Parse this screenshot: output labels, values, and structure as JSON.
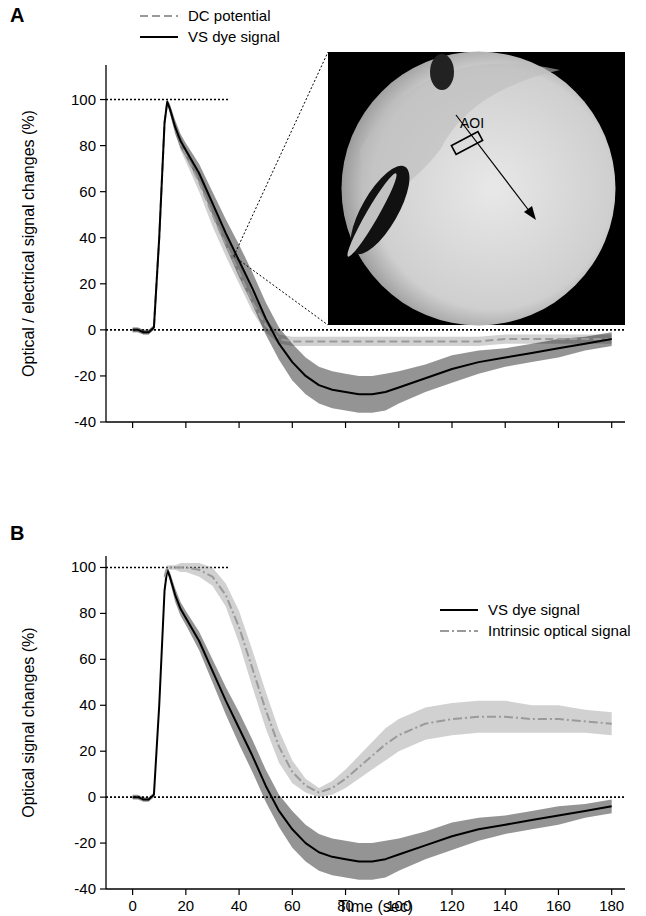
{
  "chart_data": [
    {
      "type": "line",
      "title": "A",
      "y_label": "Optical / electrical signal changes (%)",
      "x": [
        0,
        2,
        4,
        6,
        8,
        10,
        12,
        13,
        14,
        16,
        18,
        20,
        25,
        30,
        35,
        40,
        45,
        50,
        55,
        60,
        65,
        70,
        75,
        80,
        85,
        90,
        95,
        100,
        110,
        120,
        130,
        140,
        150,
        160,
        170,
        180
      ],
      "xlim": [
        -10,
        185
      ],
      "xticks": [
        0,
        20,
        40,
        60,
        80,
        100,
        120,
        140,
        160,
        180
      ],
      "ylim": [
        -40,
        115
      ],
      "yticks": [
        -40,
        -20,
        0,
        20,
        40,
        60,
        80,
        100
      ],
      "tick_labels": "y",
      "legend": "top left",
      "grid": false,
      "annotation": "AOI",
      "reference_lines": [
        {
          "y": 100,
          "x_end": 36
        },
        {
          "y": 0
        }
      ],
      "series": [
        {
          "name": "DC potential",
          "color": "#9a9a9a",
          "line_style": "dashed",
          "values": [
            0,
            0,
            -1,
            -1,
            1,
            40,
            90,
            99,
            96,
            88,
            81,
            76,
            64,
            50,
            37,
            25,
            12,
            2,
            -4,
            -5,
            -5,
            -5,
            -5,
            -5,
            -5,
            -5,
            -5,
            -5,
            -5,
            -5,
            -5,
            -4,
            -4,
            -4,
            -4,
            -4
          ],
          "errors": [
            1,
            1,
            1,
            1,
            1,
            2,
            2,
            1,
            2,
            2,
            3,
            3,
            4,
            5,
            5,
            5,
            4,
            3,
            2,
            2,
            2,
            2,
            2,
            2,
            2,
            2,
            2,
            2,
            2,
            2,
            2,
            2,
            2,
            2,
            2,
            2
          ]
        },
        {
          "name": "VS dye signal",
          "color": "#000000",
          "line_style": "solid",
          "values": [
            0,
            0,
            -1,
            -1,
            1,
            40,
            90,
            99,
            96,
            88,
            82,
            78,
            68,
            55,
            42,
            30,
            18,
            5,
            -6,
            -14,
            -20,
            -24,
            -26,
            -27,
            -28,
            -28,
            -27,
            -25,
            -21,
            -17,
            -14,
            -12,
            -10,
            -8,
            -6,
            -4
          ],
          "errors": [
            1,
            1,
            1,
            1,
            1,
            2,
            2,
            1,
            2,
            3,
            3,
            3,
            4,
            5,
            6,
            7,
            7,
            7,
            7,
            8,
            8,
            8,
            8,
            8,
            8,
            8,
            8,
            7,
            6,
            6,
            5,
            4,
            4,
            4,
            3,
            3
          ]
        }
      ]
    },
    {
      "type": "line",
      "title": "B",
      "y_label": "Optical signal changes (%)",
      "x_label": "Time (sec)",
      "x": [
        0,
        2,
        4,
        6,
        8,
        10,
        12,
        13,
        14,
        16,
        18,
        20,
        25,
        30,
        35,
        40,
        45,
        50,
        55,
        60,
        65,
        70,
        75,
        80,
        85,
        90,
        95,
        100,
        110,
        120,
        130,
        140,
        150,
        160,
        170,
        180
      ],
      "xlim": [
        -10,
        185
      ],
      "xticks": [
        0,
        20,
        40,
        60,
        80,
        100,
        120,
        140,
        160,
        180
      ],
      "ylim": [
        -40,
        105
      ],
      "yticks": [
        -40,
        -20,
        0,
        20,
        40,
        60,
        80,
        100
      ],
      "legend": "top right",
      "grid": false,
      "reference_lines": [
        {
          "y": 100,
          "x_end": 36
        },
        {
          "y": 0
        }
      ],
      "series": [
        {
          "name": "VS dye signal",
          "color": "#000000",
          "line_style": "solid",
          "values": [
            0,
            0,
            -1,
            -1,
            1,
            40,
            90,
            99,
            96,
            88,
            82,
            78,
            68,
            55,
            42,
            30,
            18,
            5,
            -6,
            -14,
            -20,
            -24,
            -26,
            -27,
            -28,
            -28,
            -27,
            -25,
            -21,
            -17,
            -14,
            -12,
            -10,
            -8,
            -6,
            -4
          ],
          "errors": [
            1,
            1,
            1,
            1,
            1,
            2,
            2,
            1,
            2,
            3,
            3,
            3,
            4,
            5,
            6,
            7,
            7,
            7,
            7,
            8,
            8,
            8,
            8,
            8,
            8,
            8,
            8,
            7,
            6,
            6,
            5,
            4,
            4,
            4,
            3,
            3
          ]
        },
        {
          "name": "Intrinsic optical signal",
          "color": "#9a9a9a",
          "line_style": "dashdot",
          "values": [
            null,
            null,
            null,
            null,
            null,
            null,
            96,
            100,
            100,
            100,
            100,
            100,
            99,
            96,
            88,
            74,
            56,
            38,
            22,
            11,
            5,
            2,
            4,
            8,
            13,
            18,
            23,
            27,
            32,
            34,
            35,
            35,
            34,
            34,
            33,
            32
          ],
          "errors": [
            null,
            null,
            null,
            null,
            null,
            null,
            2,
            1,
            1,
            1,
            2,
            2,
            3,
            4,
            5,
            7,
            8,
            8,
            7,
            5,
            3,
            2,
            3,
            4,
            5,
            6,
            7,
            7,
            7,
            7,
            7,
            7,
            6,
            6,
            5,
            5
          ]
        }
      ]
    }
  ]
}
